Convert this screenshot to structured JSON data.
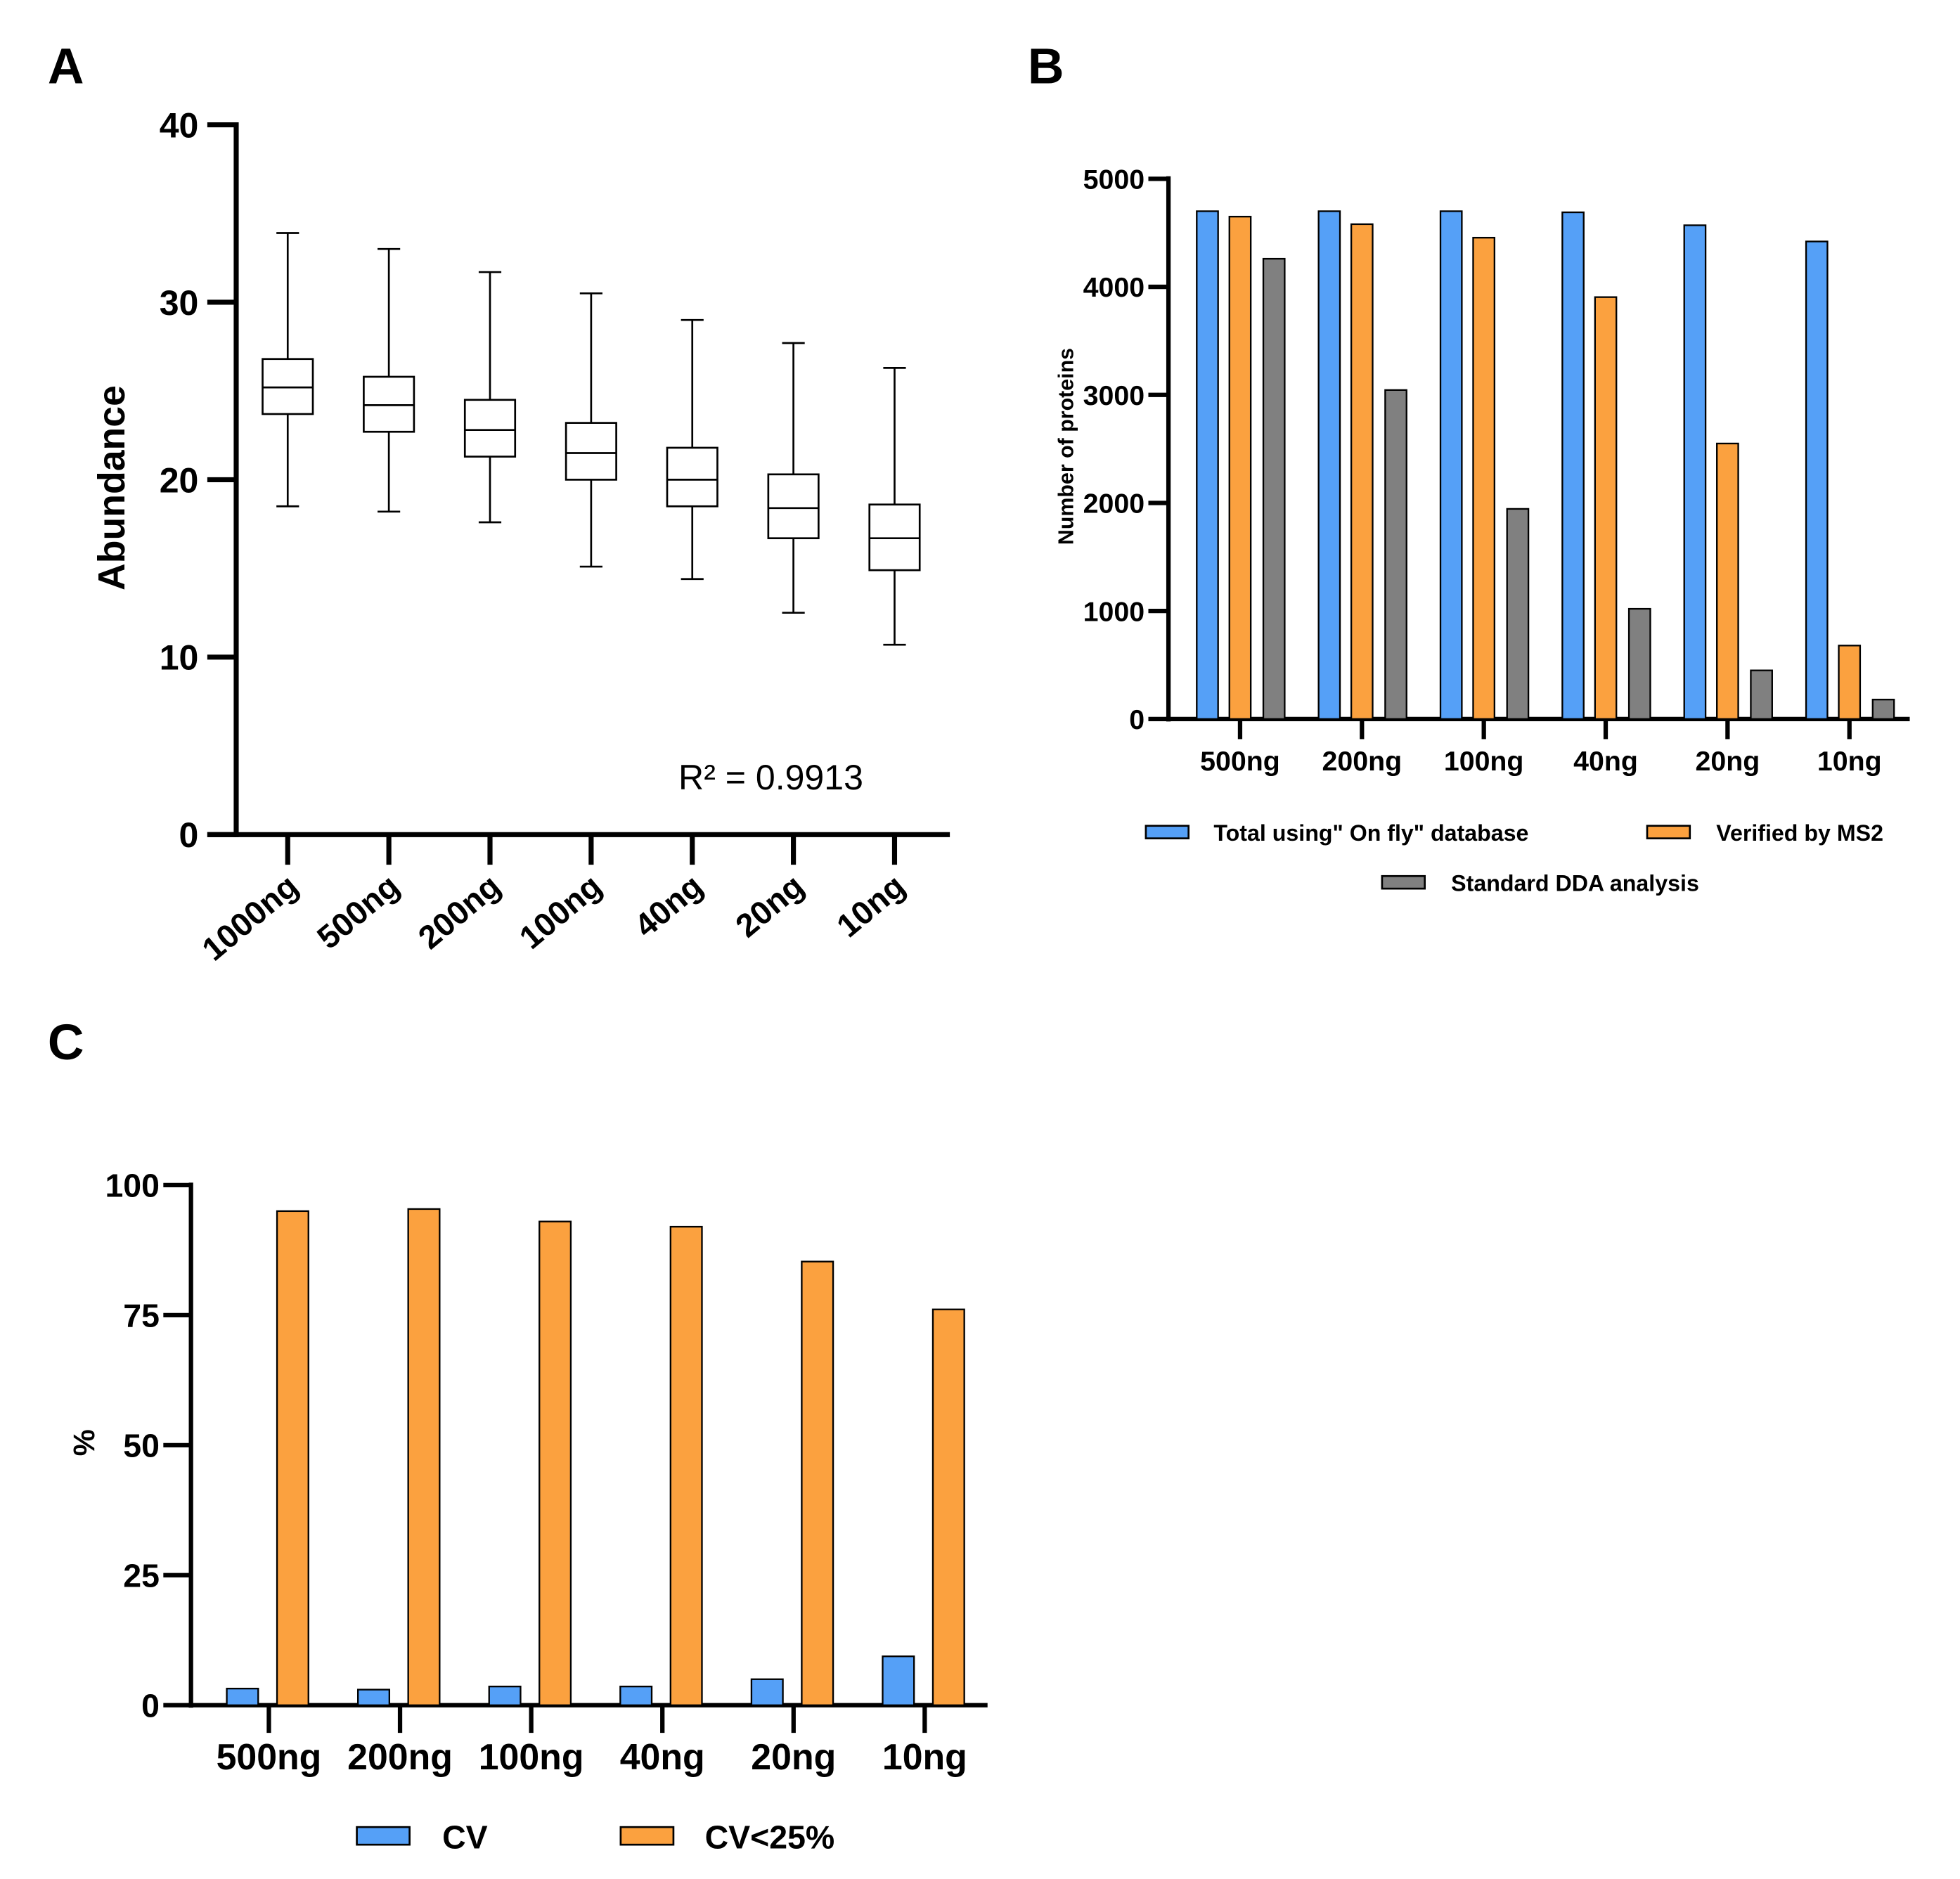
{
  "colors": {
    "blue": "#55a0f7",
    "orange": "#fba13f",
    "gray": "#808080",
    "axis": "#000000"
  },
  "chart_data": [
    {
      "panel": "A",
      "type": "box",
      "ylabel": "Abundance",
      "ylim": [
        0,
        40
      ],
      "yticks": [
        "0",
        "10",
        "20",
        "30",
        "40"
      ],
      "categories": [
        "1000ng",
        "500ng",
        "200ng",
        "100ng",
        "40ng",
        "20ng",
        "10ng"
      ],
      "boxes": [
        {
          "min": 18.5,
          "q1": 23.7,
          "median": 25.2,
          "q3": 26.8,
          "max": 33.9
        },
        {
          "min": 18.2,
          "q1": 22.7,
          "median": 24.2,
          "q3": 25.8,
          "max": 33.0
        },
        {
          "min": 17.6,
          "q1": 21.3,
          "median": 22.8,
          "q3": 24.5,
          "max": 31.7
        },
        {
          "min": 15.1,
          "q1": 20.0,
          "median": 21.5,
          "q3": 23.2,
          "max": 30.5
        },
        {
          "min": 14.4,
          "q1": 18.5,
          "median": 20.0,
          "q3": 21.8,
          "max": 29.0
        },
        {
          "min": 12.5,
          "q1": 16.7,
          "median": 18.4,
          "q3": 20.3,
          "max": 27.7
        },
        {
          "min": 10.7,
          "q1": 14.9,
          "median": 16.7,
          "q3": 18.6,
          "max": 26.3
        }
      ],
      "annotation": "R² = 0.9913"
    },
    {
      "panel": "B",
      "type": "bar",
      "ylabel": "Number of proteins",
      "ylim": [
        0,
        5000
      ],
      "yticks": [
        "0",
        "1000",
        "2000",
        "3000",
        "4000",
        "5000"
      ],
      "categories": [
        "500ng",
        "200ng",
        "100ng",
        "40ng",
        "20ng",
        "10ng"
      ],
      "series": [
        {
          "name": "Total using\" On fly\" database",
          "color": "blue",
          "values": [
            4700,
            4700,
            4700,
            4690,
            4570,
            4420
          ]
        },
        {
          "name": "Verified by MS2",
          "color": "orange",
          "values": [
            4650,
            4580,
            4455,
            3905,
            2550,
            680
          ]
        },
        {
          "name": "Standard DDA analysis",
          "color": "gray",
          "values": [
            4260,
            3045,
            1945,
            1020,
            450,
            180
          ]
        }
      ],
      "legend": "bottom"
    },
    {
      "panel": "C",
      "type": "bar",
      "ylabel": "%",
      "ylim": [
        0,
        100
      ],
      "yticks": [
        "0",
        "25",
        "50",
        "75",
        "100"
      ],
      "categories": [
        "500ng",
        "200ng",
        "100ng",
        "40ng",
        "20ng",
        "10ng"
      ],
      "series": [
        {
          "name": "CV",
          "color": "blue",
          "values": [
            3.2,
            3.0,
            3.6,
            3.6,
            5.0,
            9.4
          ]
        },
        {
          "name": "CV<25%",
          "color": "orange",
          "values": [
            95.0,
            95.4,
            93.0,
            92.0,
            85.3,
            76.1
          ]
        }
      ],
      "legend": "bottom"
    }
  ]
}
